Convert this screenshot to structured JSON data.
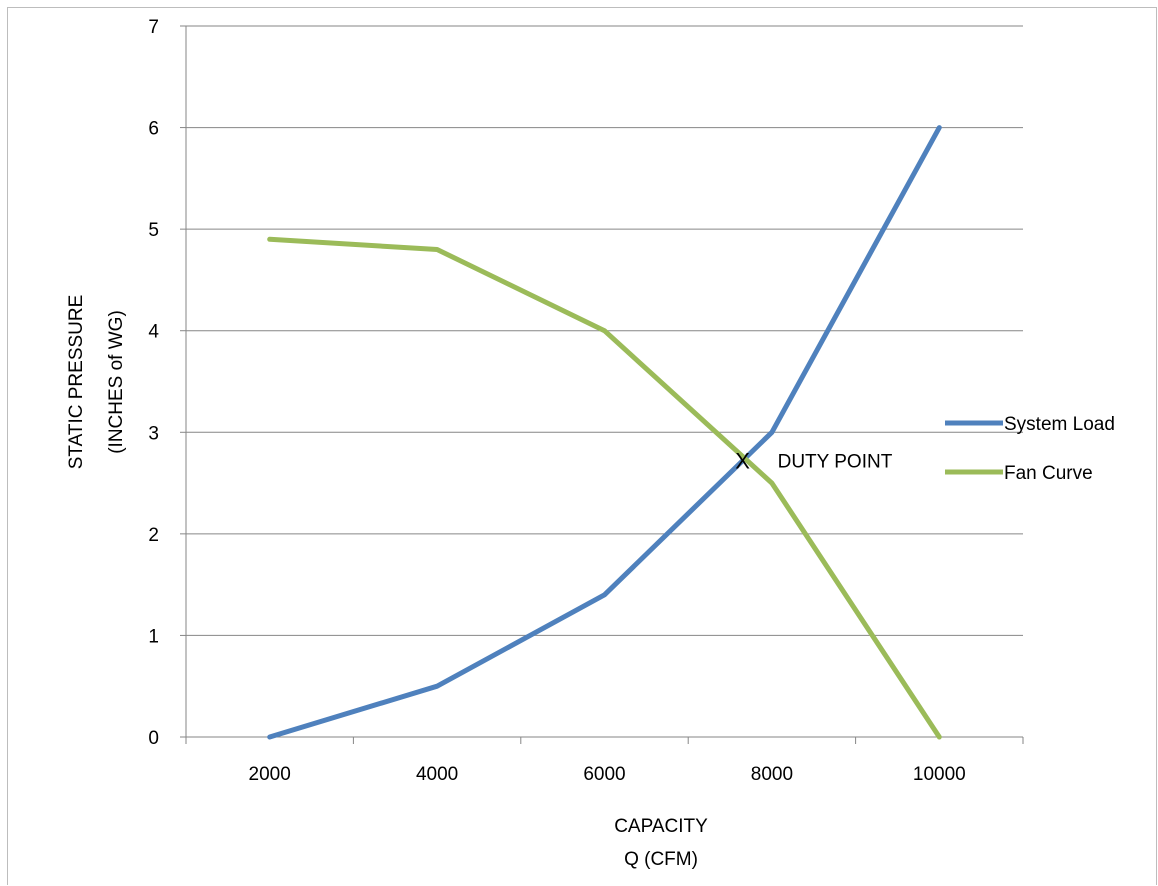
{
  "chart_data": {
    "type": "line",
    "title": "",
    "x": [
      2000,
      4000,
      6000,
      8000,
      10000
    ],
    "x_tick_labels": [
      "2000",
      "4000",
      "6000",
      "8000",
      "10000"
    ],
    "y_tick_labels": [
      "0",
      "1",
      "2",
      "3",
      "4",
      "5",
      "6",
      "7"
    ],
    "ylim": [
      0,
      7
    ],
    "xlabel_lines": [
      "CAPACITY",
      "Q (CFM)"
    ],
    "ylabel_lines": [
      "STATIC PRESSURE",
      "(INCHES  of WG)"
    ],
    "grid": "horizontal",
    "legend_position": "right",
    "series": [
      {
        "name": "System Load",
        "color": "#4f81bd",
        "values": [
          0,
          0.5,
          1.4,
          3.0,
          6.0
        ]
      },
      {
        "name": "Fan Curve",
        "color": "#9bbb59",
        "values": [
          4.9,
          4.8,
          4.0,
          2.5,
          0
        ]
      }
    ],
    "annotation": {
      "marker": "X",
      "text": "DUTY POINT",
      "x": 7650,
      "y": 2.72
    }
  }
}
